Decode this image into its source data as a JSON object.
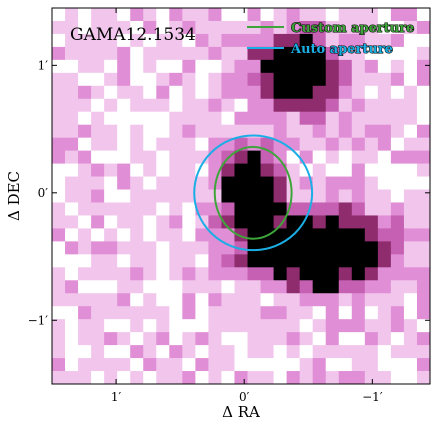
{
  "chart_data": {
    "type": "heatmap",
    "title": "GAMA12.1534",
    "xlabel": "Δ RA",
    "ylabel": "Δ DEC",
    "x_unit": "arcmin",
    "y_unit": "arcmin",
    "xlim": [
      1.5,
      -1.45
    ],
    "ylim": [
      -1.5,
      1.45
    ],
    "x_ticks": [
      {
        "value": 1,
        "label": "1′"
      },
      {
        "value": 0,
        "label": "0′"
      },
      {
        "value": -1,
        "label": "−1′"
      }
    ],
    "y_ticks": [
      {
        "value": 1,
        "label": "1′"
      },
      {
        "value": 0,
        "label": "0′"
      },
      {
        "value": -1,
        "label": "−1′"
      }
    ],
    "colormap": [
      "#ffffff",
      "#f2c6ec",
      "#e08ed6",
      "#c560b3",
      "#8f2c6e",
      "#000000"
    ],
    "grid": false,
    "legend_position": "top-right",
    "sources": [
      {
        "ra": -0.05,
        "dec": 0.05,
        "sigma_ra": 0.14,
        "sigma_dec": 0.22
      },
      {
        "ra": -0.55,
        "dec": -0.45,
        "sigma_ra": 0.38,
        "sigma_dec": 0.2
      },
      {
        "ra": -0.4,
        "dec": 0.95,
        "sigma_ra": 0.22,
        "sigma_dec": 0.2
      }
    ],
    "apertures": [
      {
        "name": "Custom aperture",
        "color": "#3ea53a",
        "center": [
          -0.07,
          0.0
        ],
        "semi_major": 0.36,
        "semi_minor": 0.3,
        "angle_deg": 90
      },
      {
        "name": "Auto aperture",
        "color": "#1aaee5",
        "center": [
          -0.07,
          0.0
        ],
        "semi_major": 0.46,
        "semi_minor": 0.45,
        "angle_deg": 0
      }
    ]
  }
}
